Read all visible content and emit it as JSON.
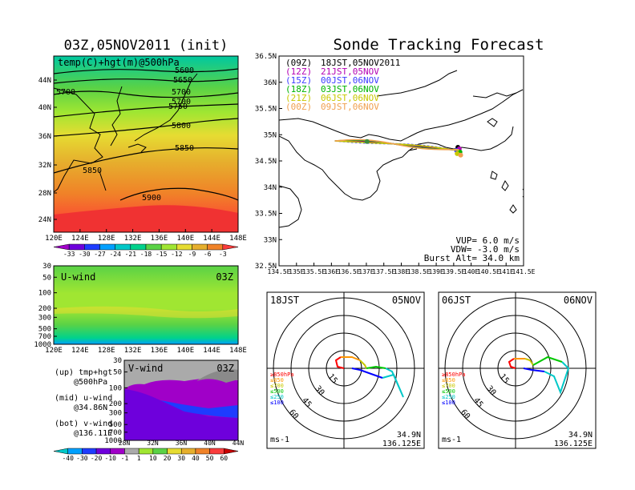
{
  "left_title": "03Z,05NOV2011 (init)",
  "right_title": "Sonde Tracking Forecast",
  "upper_map": {
    "label": "temp(C)+hgt(m)@500hPa",
    "lat_ticks": [
      "44N",
      "40N",
      "36N",
      "32N",
      "28N",
      "24N"
    ],
    "lon_ticks": [
      "120E",
      "124E",
      "128E",
      "132E",
      "136E",
      "140E",
      "144E",
      "148E"
    ],
    "contour_labels": [
      "5600",
      "5650",
      "5700",
      "5700",
      "5700",
      "5750",
      "5800",
      "5850",
      "5850",
      "5900"
    ],
    "colorbar_labels": [
      "-33",
      "-30",
      "-27",
      "-24",
      "-21",
      "-18",
      "-15",
      "-12",
      "-9",
      "-6",
      "-3"
    ],
    "colorbar_colors": [
      "#a000c8",
      "#6e00dc",
      "#1e3cff",
      "#00a0ff",
      "#00c8c8",
      "#00d28c",
      "#5ad246",
      "#a0e632",
      "#e6dc32",
      "#e6af2d",
      "#f08228",
      "#fa3c3c"
    ]
  },
  "u_panel": {
    "label": "U-wind",
    "time": "03Z",
    "y_ticks": [
      "30",
      "50",
      "100",
      "200",
      "300",
      "500",
      "700",
      "1000"
    ],
    "x_ticks": [
      "120E",
      "124E",
      "128E",
      "132E",
      "136E",
      "140E",
      "144E",
      "148E"
    ]
  },
  "v_panel": {
    "label": "V-wind",
    "time": "03Z",
    "y_ticks": [
      "30",
      "50",
      "100",
      "200",
      "300",
      "500",
      "700",
      "1000"
    ],
    "x_ticks": [
      "28N",
      "32N",
      "36N",
      "40N",
      "44N"
    ],
    "colorbar_labels": [
      "-40",
      "-30",
      "-20",
      "-10",
      "-1",
      "1",
      "10",
      "20",
      "30",
      "40",
      "50",
      "60"
    ],
    "colorbar_colors": [
      "#00c8c8",
      "#00a0ff",
      "#1e3cff",
      "#6e00dc",
      "#a000c8",
      "#aaaaaa",
      "#a0e632",
      "#5ad246",
      "#e6dc32",
      "#e6af2d",
      "#f08228",
      "#fa3c3c",
      "#c80000"
    ]
  },
  "side_notes": [
    "(up) tmp+hgt",
    "@500hPa",
    "(mid) u-wind",
    "@34.86N",
    "(bot) v-wind",
    "@136.11E"
  ],
  "track_map": {
    "legend": [
      {
        "code": "(09Z)",
        "text": "18JST,05NOV2011",
        "color": "#000000"
      },
      {
        "code": "(12Z)",
        "text": "21JST,05NOV",
        "color": "#b400b4"
      },
      {
        "code": "(15Z)",
        "text": "00JST,06NOV",
        "color": "#3c3cff"
      },
      {
        "code": "(18Z)",
        "text": "03JST,06NOV",
        "color": "#00b400"
      },
      {
        "code": "(21Z)",
        "text": "06JST,06NOV",
        "color": "#c8c800"
      },
      {
        "code": "(00Z)",
        "text": "09JST,06NOV",
        "color": "#f0a050"
      }
    ],
    "lat_ticks": [
      "36.5N",
      "36N",
      "35.5N",
      "35N",
      "34.5N",
      "34N",
      "33.5N",
      "33N",
      "32.5N"
    ],
    "lon_ticks": [
      "134.5E",
      "135E",
      "135.5E",
      "136E",
      "136.5E",
      "137E",
      "137.5E",
      "138E",
      "138.5E",
      "139E",
      "139.5E",
      "140E",
      "140.5E",
      "141E",
      "141.5E"
    ],
    "params": [
      "VUP= 6.0 m/s",
      "VDW= -3.0 m/s",
      "Burst Alt= 34.0 km"
    ]
  },
  "hodographs": [
    {
      "time": "18JST",
      "date": "05NOV",
      "lat": "34.9N",
      "lon": "136.125E",
      "unit": "ms-1",
      "ring_labels": [
        "15",
        "30",
        "45",
        "60"
      ]
    },
    {
      "time": "06JST",
      "date": "06NOV",
      "lat": "34.9N",
      "lon": "136.125E",
      "unit": "ms-1",
      "ring_labels": [
        "15",
        "30",
        "45",
        "60"
      ]
    }
  ],
  "hodo_legend": [
    {
      "text": "≥850hPa",
      "color": "#ff0000"
    },
    {
      "text": "≤850",
      "color": "#ff9600"
    },
    {
      "text": "≤700",
      "color": "#c8c800"
    },
    {
      "text": "≤500",
      "color": "#00c800"
    },
    {
      "text": "≤250",
      "color": "#00c8c8"
    },
    {
      "text": "≤100",
      "color": "#0000ff"
    }
  ]
}
